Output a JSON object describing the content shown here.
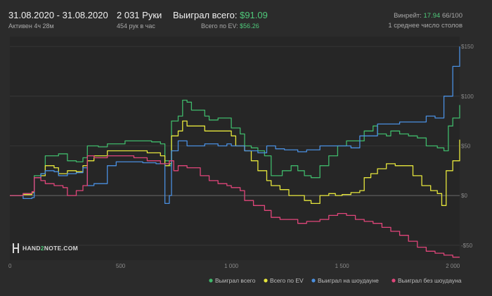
{
  "header": {
    "date_range": "31.08.2020 - 31.08.2020",
    "active_time": "Активен 4ч 28м",
    "hands": "2 031 Руки",
    "hands_per_hour": "454 рук в час",
    "won_total_label": "Выиграл всего:",
    "won_total_value": "$91.09",
    "ev_total_label": "Всего по EV:",
    "ev_total_value": "$56.26",
    "winrate_label": "Винрейт:",
    "winrate_value": "17.94",
    "winrate_tail": "66/100",
    "avg_tables": "1 среднее число столов"
  },
  "logo": {
    "text_a": "HAND",
    "text_b": "2",
    "text_c": "NOTE.COM"
  },
  "colors": {
    "won_total": "#3fb86a",
    "ev": "#e6e63c",
    "showdown": "#4a8fe0",
    "non_showdown": "#e0457a"
  },
  "chart_data": {
    "type": "line",
    "xlim": [
      0,
      2031
    ],
    "ylim": [
      -65,
      160
    ],
    "x_ticks": [
      0,
      500,
      1000,
      1500,
      2000
    ],
    "x_tick_labels": [
      "0",
      "500",
      "1 000",
      "1 500",
      "2 000"
    ],
    "y_ticks": [
      150,
      100,
      50,
      0,
      -50
    ],
    "y_tick_labels": [
      "$150",
      "$100",
      "$50",
      "$0",
      "-$50"
    ],
    "legend_position": "bottom-right",
    "series": [
      {
        "name": "Выиграл всего",
        "color": "#3fb86a",
        "points": [
          [
            0,
            0
          ],
          [
            60,
            2
          ],
          [
            100,
            3
          ],
          [
            110,
            20
          ],
          [
            140,
            22
          ],
          [
            160,
            40
          ],
          [
            200,
            40
          ],
          [
            220,
            42
          ],
          [
            260,
            35
          ],
          [
            300,
            34
          ],
          [
            330,
            38
          ],
          [
            350,
            50
          ],
          [
            380,
            50
          ],
          [
            400,
            49
          ],
          [
            440,
            52
          ],
          [
            480,
            52
          ],
          [
            520,
            55
          ],
          [
            560,
            55
          ],
          [
            600,
            55
          ],
          [
            640,
            54
          ],
          [
            680,
            52
          ],
          [
            700,
            35
          ],
          [
            720,
            30
          ],
          [
            730,
            75
          ],
          [
            760,
            80
          ],
          [
            780,
            96
          ],
          [
            800,
            94
          ],
          [
            820,
            86
          ],
          [
            880,
            80
          ],
          [
            900,
            76
          ],
          [
            940,
            78
          ],
          [
            980,
            78
          ],
          [
            1000,
            68
          ],
          [
            1040,
            62
          ],
          [
            1060,
            50
          ],
          [
            1090,
            48
          ],
          [
            1120,
            45
          ],
          [
            1150,
            40
          ],
          [
            1180,
            20
          ],
          [
            1230,
            25
          ],
          [
            1270,
            30
          ],
          [
            1300,
            25
          ],
          [
            1330,
            20
          ],
          [
            1360,
            18
          ],
          [
            1400,
            30
          ],
          [
            1440,
            40
          ],
          [
            1480,
            50
          ],
          [
            1520,
            55
          ],
          [
            1560,
            55
          ],
          [
            1600,
            65
          ],
          [
            1640,
            70
          ],
          [
            1660,
            62
          ],
          [
            1700,
            60
          ],
          [
            1720,
            65
          ],
          [
            1760,
            62
          ],
          [
            1800,
            60
          ],
          [
            1840,
            58
          ],
          [
            1880,
            50
          ],
          [
            1930,
            48
          ],
          [
            1960,
            45
          ],
          [
            1980,
            70
          ],
          [
            2000,
            78
          ],
          [
            2031,
            91.09
          ]
        ]
      },
      {
        "name": "Всего по EV",
        "color": "#e6e63c",
        "points": [
          [
            0,
            0
          ],
          [
            60,
            1
          ],
          [
            100,
            3
          ],
          [
            110,
            18
          ],
          [
            140,
            20
          ],
          [
            160,
            30
          ],
          [
            200,
            28
          ],
          [
            220,
            22
          ],
          [
            260,
            25
          ],
          [
            300,
            24
          ],
          [
            330,
            30
          ],
          [
            350,
            35
          ],
          [
            380,
            40
          ],
          [
            440,
            45
          ],
          [
            500,
            45
          ],
          [
            560,
            45
          ],
          [
            620,
            43
          ],
          [
            680,
            40
          ],
          [
            700,
            30
          ],
          [
            720,
            32
          ],
          [
            730,
            60
          ],
          [
            760,
            65
          ],
          [
            780,
            75
          ],
          [
            800,
            70
          ],
          [
            820,
            70
          ],
          [
            880,
            65
          ],
          [
            900,
            65
          ],
          [
            940,
            65
          ],
          [
            980,
            65
          ],
          [
            1000,
            60
          ],
          [
            1020,
            50
          ],
          [
            1060,
            45
          ],
          [
            1090,
            35
          ],
          [
            1120,
            25
          ],
          [
            1160,
            15
          ],
          [
            1180,
            10
          ],
          [
            1220,
            6
          ],
          [
            1260,
            0
          ],
          [
            1300,
            0
          ],
          [
            1330,
            -5
          ],
          [
            1360,
            -8
          ],
          [
            1400,
            0
          ],
          [
            1440,
            2
          ],
          [
            1470,
            0
          ],
          [
            1500,
            1
          ],
          [
            1540,
            3
          ],
          [
            1580,
            5
          ],
          [
            1600,
            18
          ],
          [
            1630,
            22
          ],
          [
            1660,
            27
          ],
          [
            1700,
            32
          ],
          [
            1740,
            30
          ],
          [
            1780,
            30
          ],
          [
            1820,
            20
          ],
          [
            1860,
            10
          ],
          [
            1900,
            5
          ],
          [
            1930,
            2
          ],
          [
            1950,
            -10
          ],
          [
            1970,
            25
          ],
          [
            2000,
            35
          ],
          [
            2031,
            56.26
          ]
        ]
      },
      {
        "name": "Выиграл на шоудауне",
        "color": "#4a8fe0",
        "points": [
          [
            0,
            0
          ],
          [
            60,
            -3
          ],
          [
            100,
            -2
          ],
          [
            110,
            18
          ],
          [
            140,
            22
          ],
          [
            160,
            25
          ],
          [
            200,
            24
          ],
          [
            220,
            20
          ],
          [
            260,
            22
          ],
          [
            300,
            23
          ],
          [
            330,
            28
          ],
          [
            350,
            10
          ],
          [
            380,
            12
          ],
          [
            440,
            30
          ],
          [
            480,
            34
          ],
          [
            540,
            34
          ],
          [
            600,
            33
          ],
          [
            660,
            32
          ],
          [
            700,
            -8
          ],
          [
            720,
            0
          ],
          [
            730,
            45
          ],
          [
            760,
            55
          ],
          [
            800,
            50
          ],
          [
            880,
            52
          ],
          [
            940,
            50
          ],
          [
            980,
            52
          ],
          [
            1000,
            50
          ],
          [
            1060,
            45
          ],
          [
            1120,
            43
          ],
          [
            1160,
            50
          ],
          [
            1200,
            47
          ],
          [
            1240,
            46
          ],
          [
            1300,
            44
          ],
          [
            1340,
            46
          ],
          [
            1400,
            50
          ],
          [
            1460,
            50
          ],
          [
            1500,
            50
          ],
          [
            1540,
            48
          ],
          [
            1580,
            60
          ],
          [
            1620,
            60
          ],
          [
            1660,
            72
          ],
          [
            1700,
            72
          ],
          [
            1760,
            74
          ],
          [
            1820,
            74
          ],
          [
            1880,
            80
          ],
          [
            1920,
            78
          ],
          [
            1960,
            100
          ],
          [
            2000,
            130
          ],
          [
            2031,
            150
          ]
        ]
      },
      {
        "name": "Выиграл без шоудауна",
        "color": "#e0457a",
        "points": [
          [
            0,
            0
          ],
          [
            60,
            2
          ],
          [
            100,
            4
          ],
          [
            110,
            18
          ],
          [
            140,
            15
          ],
          [
            160,
            12
          ],
          [
            200,
            10
          ],
          [
            240,
            8
          ],
          [
            260,
            0
          ],
          [
            300,
            5
          ],
          [
            330,
            10
          ],
          [
            350,
            40
          ],
          [
            380,
            38
          ],
          [
            440,
            40
          ],
          [
            500,
            40
          ],
          [
            560,
            38
          ],
          [
            620,
            35
          ],
          [
            680,
            32
          ],
          [
            720,
            35
          ],
          [
            740,
            25
          ],
          [
            760,
            30
          ],
          [
            800,
            28
          ],
          [
            860,
            20
          ],
          [
            900,
            15
          ],
          [
            940,
            12
          ],
          [
            980,
            10
          ],
          [
            1000,
            8
          ],
          [
            1040,
            5
          ],
          [
            1060,
            -5
          ],
          [
            1100,
            -10
          ],
          [
            1150,
            -15
          ],
          [
            1180,
            -22
          ],
          [
            1220,
            -24
          ],
          [
            1260,
            -24
          ],
          [
            1300,
            -28
          ],
          [
            1340,
            -26
          ],
          [
            1400,
            -24
          ],
          [
            1440,
            -20
          ],
          [
            1480,
            -18
          ],
          [
            1520,
            -20
          ],
          [
            1560,
            -24
          ],
          [
            1600,
            -26
          ],
          [
            1640,
            -28
          ],
          [
            1680,
            -32
          ],
          [
            1720,
            -36
          ],
          [
            1760,
            -40
          ],
          [
            1800,
            -46
          ],
          [
            1840,
            -52
          ],
          [
            1880,
            -56
          ],
          [
            1920,
            -58
          ],
          [
            1960,
            -60
          ],
          [
            2000,
            -62
          ],
          [
            2031,
            -62
          ]
        ]
      }
    ]
  }
}
